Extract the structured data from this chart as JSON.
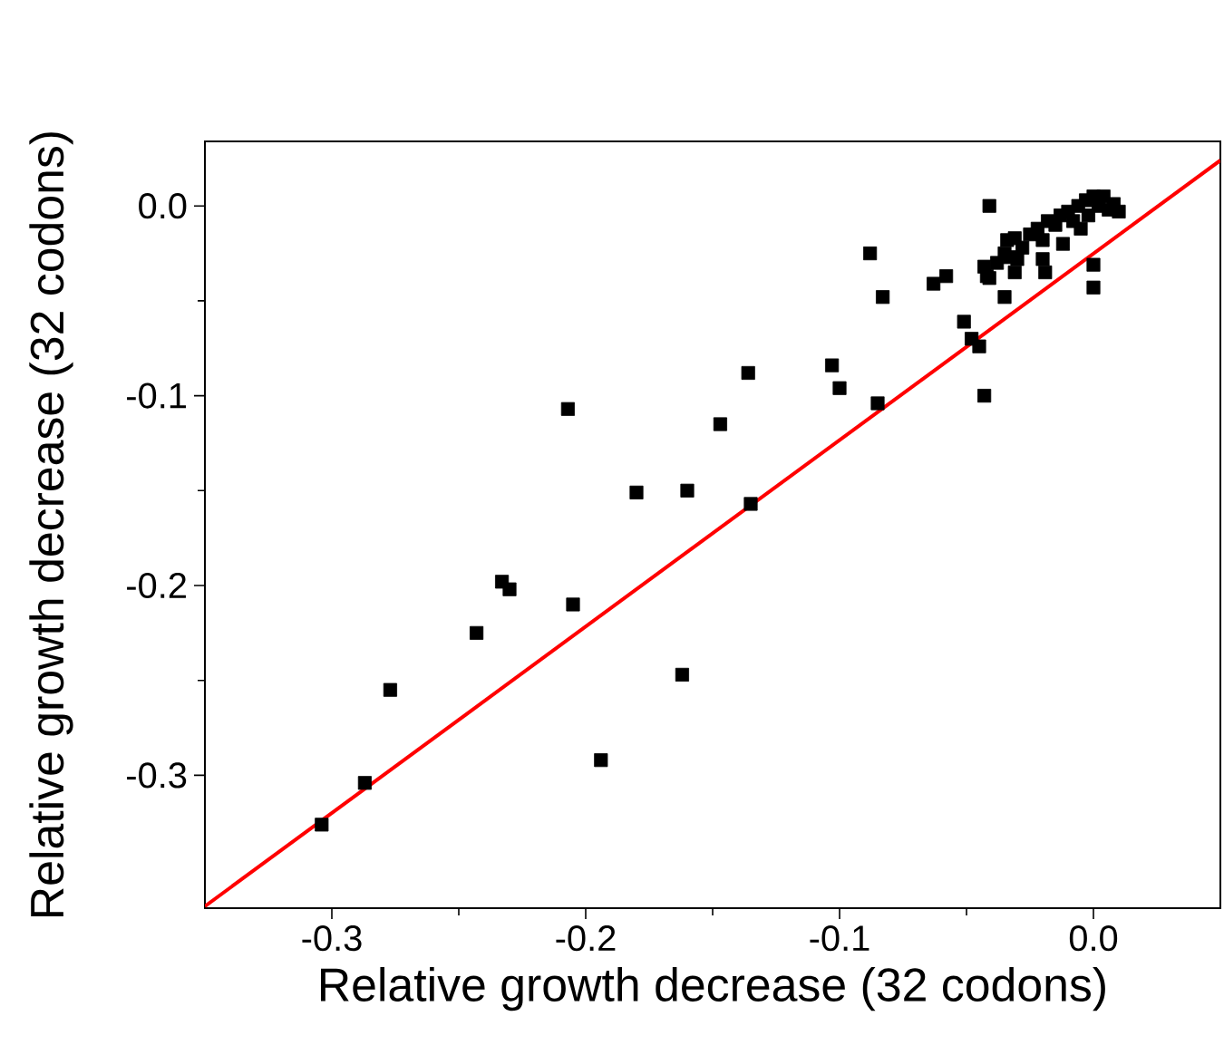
{
  "chart_data": {
    "type": "scatter",
    "xlabel": "Relative growth decrease (32 codons)",
    "ylabel": "Relative growth decrease (32 codons)",
    "xlim": [
      -0.35,
      0.05
    ],
    "ylim": [
      -0.37,
      0.034
    ],
    "xticks": [
      -0.3,
      -0.2,
      -0.1,
      {
        "value": 0,
        "label": "0.0"
      }
    ],
    "yticks": [
      -0.3,
      -0.2,
      -0.1,
      {
        "value": 0,
        "label": "0.0"
      }
    ],
    "marker": "square",
    "grid": false,
    "series": [
      {
        "color": "#000000",
        "x": [
          -0.304,
          -0.287,
          -0.277,
          -0.243,
          -0.233,
          -0.23,
          -0.205,
          -0.207,
          -0.18,
          -0.16,
          -0.162,
          -0.194,
          -0.135,
          -0.147,
          -0.136,
          -0.103,
          -0.1,
          -0.085,
          -0.088,
          -0.083,
          -0.063,
          -0.058,
          -0.051,
          -0.048,
          -0.045,
          -0.043,
          -0.041,
          -0.043,
          -0.041,
          -0.035,
          -0.031,
          -0.031,
          -0.019,
          0.0,
          0.0,
          -0.034,
          -0.033,
          -0.042,
          -0.028,
          -0.025,
          -0.022,
          -0.02,
          -0.018,
          -0.015,
          -0.013,
          -0.012,
          -0.01,
          -0.008,
          -0.006,
          -0.005,
          -0.003,
          -0.002,
          0.0,
          0.002,
          0.004,
          0.006,
          0.008,
          0.01,
          -0.035,
          -0.03,
          -0.02,
          -0.038
        ],
        "values": [
          -0.326,
          -0.304,
          -0.255,
          -0.225,
          -0.198,
          -0.202,
          -0.21,
          -0.107,
          -0.151,
          -0.15,
          -0.247,
          -0.292,
          -0.157,
          -0.115,
          -0.088,
          -0.084,
          -0.096,
          -0.104,
          -0.025,
          -0.048,
          -0.041,
          -0.037,
          -0.061,
          -0.07,
          -0.074,
          -0.1,
          0.0,
          -0.032,
          -0.038,
          -0.048,
          -0.017,
          -0.035,
          -0.035,
          -0.031,
          -0.043,
          -0.018,
          -0.027,
          -0.037,
          -0.022,
          -0.015,
          -0.012,
          -0.018,
          -0.008,
          -0.01,
          -0.005,
          -0.02,
          -0.003,
          -0.008,
          0.0,
          -0.012,
          0.003,
          -0.005,
          0.005,
          0.0,
          0.005,
          -0.002,
          0.001,
          -0.003,
          -0.025,
          -0.028,
          -0.028,
          -0.03
        ]
      },
      {
        "type": "line",
        "color": "#ff0000",
        "x": [
          -0.35,
          0.05
        ],
        "values": [
          -0.369,
          0.024
        ],
        "marker": "none"
      }
    ]
  }
}
